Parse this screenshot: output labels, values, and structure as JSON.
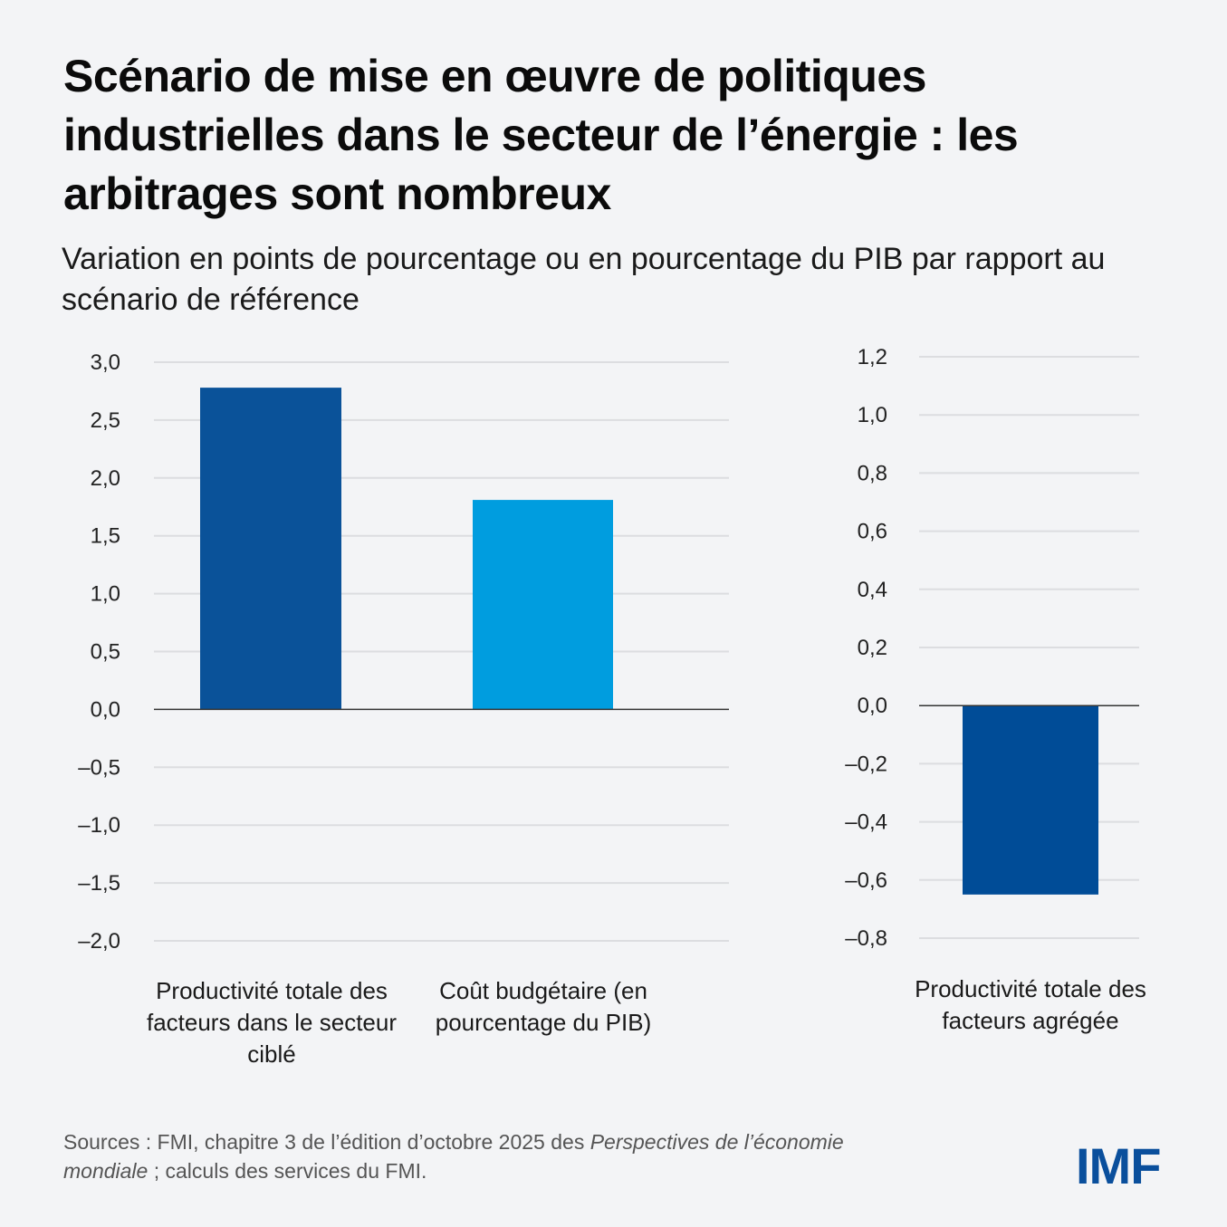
{
  "title": "Scénario de mise en œuvre de politiques industrielles dans le secteur de l’énergie : les arbitrages sont nombreux",
  "subtitle": "Variation en points de pourcentage ou en pourcentage du PIB par rapport au scénario de référence",
  "chart_data": [
    {
      "type": "bar",
      "categories": [
        "Productivité totale des facteurs dans le secteur ciblé",
        "Coût budgétaire (en pourcentage du PIB)"
      ],
      "values": [
        2.78,
        1.81
      ],
      "colors": [
        "#0a5299",
        "#009ddf"
      ],
      "ylim": [
        -2.0,
        3.0
      ],
      "yticks": [
        "3,0",
        "2,5",
        "2,0",
        "1,5",
        "1,0",
        "0,5",
        "0,0",
        "–0,5",
        "–1,0",
        "–1,5",
        "–2,0"
      ],
      "ytick_values": [
        3.0,
        2.5,
        2.0,
        1.5,
        1.0,
        0.5,
        0.0,
        -0.5,
        -1.0,
        -1.5,
        -2.0
      ],
      "grid": true
    },
    {
      "type": "bar",
      "categories": [
        "Productivité totale des facteurs agrégée"
      ],
      "values": [
        -0.65
      ],
      "colors": [
        "#004c97"
      ],
      "ylim": [
        -0.8,
        1.2
      ],
      "yticks": [
        "1,2",
        "1,0",
        "0,8",
        "0,6",
        "0,4",
        "0,2",
        "0,0",
        "–0,2",
        "–0,4",
        "–0,6",
        "–0,8"
      ],
      "ytick_values": [
        1.2,
        1.0,
        0.8,
        0.6,
        0.4,
        0.2,
        0.0,
        -0.2,
        -0.4,
        -0.6,
        -0.8
      ],
      "grid": true
    }
  ],
  "source": {
    "prefix": "Sources : FMI, chapitre 3 de l’édition d’octobre 2025 des ",
    "italic": "Perspectives de l’économie mondiale",
    "suffix": " ; calculs des services du FMI."
  },
  "logo": "IMF"
}
